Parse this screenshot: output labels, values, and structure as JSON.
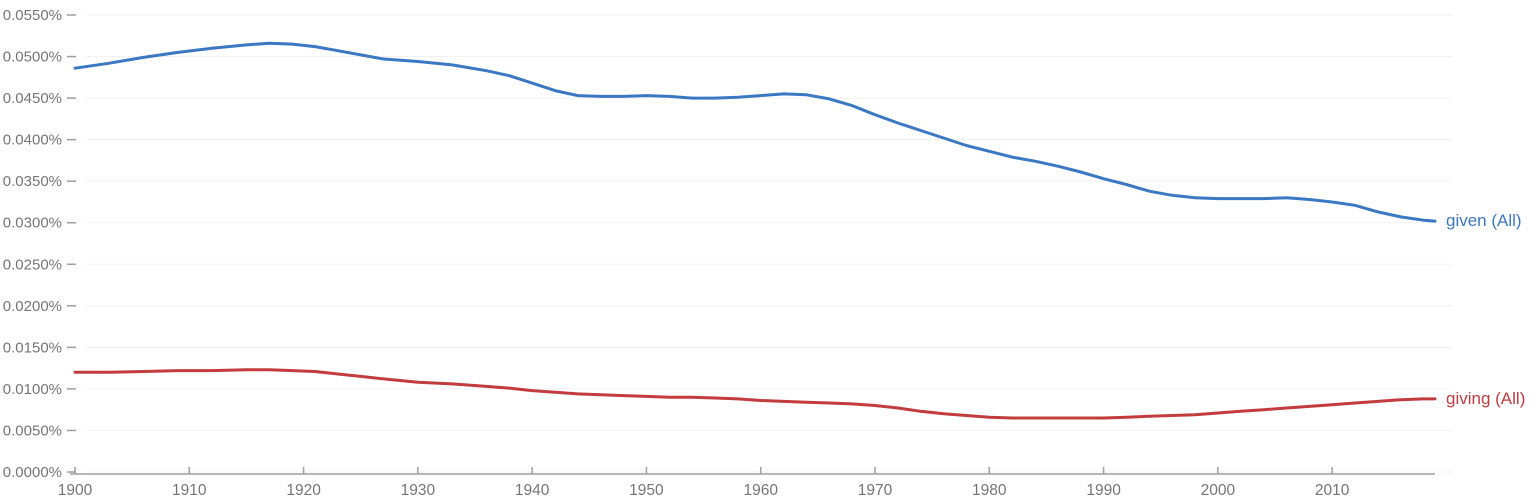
{
  "chart_data": {
    "type": "line",
    "title": "",
    "xlabel": "",
    "ylabel": "",
    "grid": "horizontal",
    "legend_position": "right-of-line-end",
    "x_range": [
      1900,
      2019
    ],
    "y_range": [
      0,
      0.055
    ],
    "x_tick_labels": [
      "1900",
      "1910",
      "1920",
      "1930",
      "1940",
      "1950",
      "1960",
      "1970",
      "1980",
      "1990",
      "2000",
      "2010"
    ],
    "x_tick_values": [
      1900,
      1910,
      1920,
      1930,
      1940,
      1950,
      1960,
      1970,
      1980,
      1990,
      2000,
      2010
    ],
    "y_tick_labels": [
      "0.0000%",
      "0.0050%",
      "0.0100%",
      "0.0150%",
      "0.0200%",
      "0.0250%",
      "0.0300%",
      "0.0350%",
      "0.0400%",
      "0.0450%",
      "0.0500%",
      "0.0550%"
    ],
    "y_tick_values": [
      0.0,
      0.005,
      0.01,
      0.015,
      0.02,
      0.025,
      0.03,
      0.035,
      0.04,
      0.045,
      0.05,
      0.055
    ],
    "x": [
      1900,
      1903,
      1906,
      1909,
      1912,
      1915,
      1917,
      1919,
      1921,
      1923,
      1925,
      1927,
      1930,
      1933,
      1936,
      1938,
      1940,
      1942,
      1944,
      1946,
      1948,
      1950,
      1952,
      1954,
      1956,
      1958,
      1960,
      1962,
      1964,
      1966,
      1968,
      1970,
      1972,
      1974,
      1976,
      1978,
      1980,
      1982,
      1984,
      1986,
      1988,
      1990,
      1992,
      1994,
      1996,
      1998,
      2000,
      2002,
      2004,
      2006,
      2008,
      2010,
      2012,
      2014,
      2016,
      2018,
      2019
    ],
    "series": [
      {
        "name": "given (All)",
        "color": "#3b78c3",
        "values": [
          0.0486,
          0.0492,
          0.0499,
          0.0505,
          0.051,
          0.0514,
          0.0516,
          0.0515,
          0.0512,
          0.0507,
          0.0502,
          0.0497,
          0.0494,
          0.049,
          0.0483,
          0.0477,
          0.0468,
          0.0459,
          0.0453,
          0.0452,
          0.0452,
          0.0453,
          0.0452,
          0.045,
          0.045,
          0.0451,
          0.0453,
          0.0455,
          0.0454,
          0.0449,
          0.0441,
          0.043,
          0.042,
          0.0411,
          0.0402,
          0.0393,
          0.0386,
          0.0379,
          0.0374,
          0.0368,
          0.0361,
          0.0353,
          0.0346,
          0.0338,
          0.0333,
          0.033,
          0.0329,
          0.0329,
          0.0329,
          0.033,
          0.0328,
          0.0325,
          0.0321,
          0.0313,
          0.0307,
          0.0303,
          0.0302
        ]
      },
      {
        "name": "giving (All)",
        "color": "#c23b3d",
        "values": [
          0.012,
          0.012,
          0.0121,
          0.0122,
          0.0122,
          0.0123,
          0.0123,
          0.0122,
          0.0121,
          0.0118,
          0.0115,
          0.0112,
          0.0108,
          0.0106,
          0.0103,
          0.0101,
          0.0098,
          0.0096,
          0.0094,
          0.0093,
          0.0092,
          0.0091,
          0.009,
          0.009,
          0.0089,
          0.0088,
          0.0086,
          0.0085,
          0.0084,
          0.0083,
          0.0082,
          0.008,
          0.0077,
          0.0073,
          0.007,
          0.0068,
          0.0066,
          0.0065,
          0.0065,
          0.0065,
          0.0065,
          0.0065,
          0.0066,
          0.0067,
          0.0068,
          0.0069,
          0.0071,
          0.0073,
          0.0075,
          0.0077,
          0.0079,
          0.0081,
          0.0083,
          0.0085,
          0.0087,
          0.0088,
          0.0088
        ]
      }
    ],
    "colors": {
      "axis_line": "#9e9e9e",
      "tick_mark": "#9e9e9e",
      "axis_text": "#757575",
      "gridline": "#f1f1f1",
      "background": "#ffffff"
    }
  }
}
